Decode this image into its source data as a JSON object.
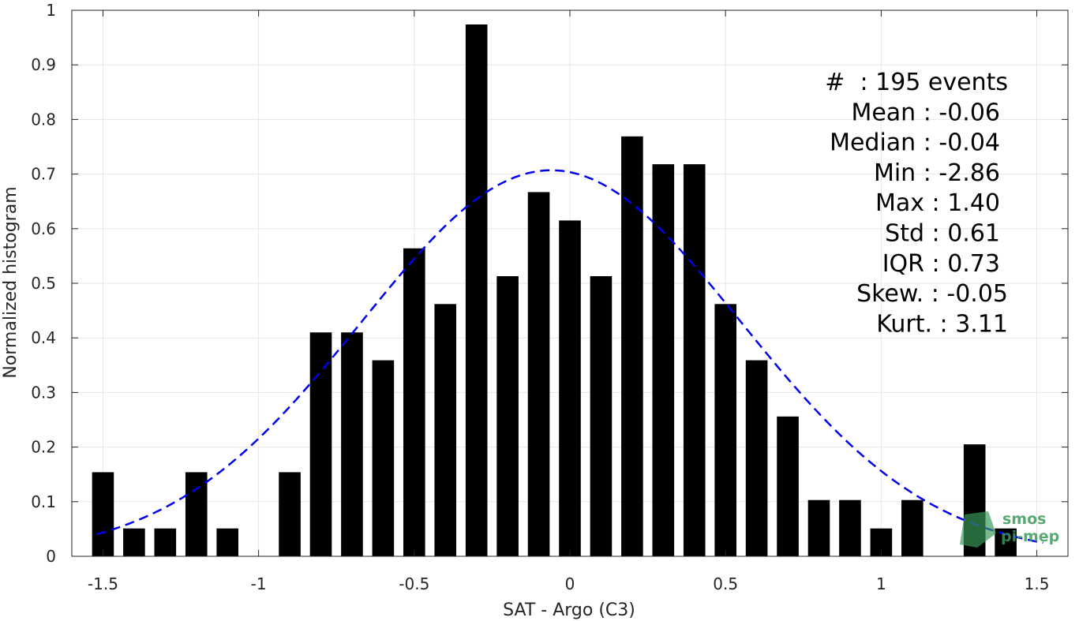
{
  "chart_data": {
    "type": "bar",
    "xlabel": "SAT - Argo (C3)",
    "ylabel": "Normalized histogram",
    "xlim": [
      -1.6,
      1.6
    ],
    "ylim": [
      0,
      1
    ],
    "xticks": [
      -1.5,
      -1,
      -0.5,
      0,
      0.5,
      1,
      1.5
    ],
    "xtick_labels": [
      "-1.5",
      "-1",
      "-0.5",
      "0",
      "0.5",
      "1",
      "1.5"
    ],
    "yticks": [
      0,
      0.1,
      0.2,
      0.3,
      0.4,
      0.5,
      0.6,
      0.7,
      0.8,
      0.9,
      1
    ],
    "ytick_labels": [
      "0",
      "0.1",
      "0.2",
      "0.3",
      "0.4",
      "0.5",
      "0.6",
      "0.7",
      "0.8",
      "0.9",
      "1"
    ],
    "grid": true,
    "bin_width": 0.1,
    "bar_width": 0.07,
    "bar_color": "#000000",
    "bins": [
      {
        "x": -1.5,
        "y": 0.154
      },
      {
        "x": -1.4,
        "y": 0.051
      },
      {
        "x": -1.3,
        "y": 0.051
      },
      {
        "x": -1.2,
        "y": 0.154
      },
      {
        "x": -1.1,
        "y": 0.051
      },
      {
        "x": -1.0,
        "y": 0
      },
      {
        "x": -0.9,
        "y": 0.154
      },
      {
        "x": -0.8,
        "y": 0.41
      },
      {
        "x": -0.7,
        "y": 0.41
      },
      {
        "x": -0.6,
        "y": 0.359
      },
      {
        "x": -0.5,
        "y": 0.564
      },
      {
        "x": -0.4,
        "y": 0.462
      },
      {
        "x": -0.3,
        "y": 0.974
      },
      {
        "x": -0.2,
        "y": 0.513
      },
      {
        "x": -0.1,
        "y": 0.667
      },
      {
        "x": 0.0,
        "y": 0.615
      },
      {
        "x": 0.1,
        "y": 0.513
      },
      {
        "x": 0.2,
        "y": 0.769
      },
      {
        "x": 0.3,
        "y": 0.718
      },
      {
        "x": 0.4,
        "y": 0.718
      },
      {
        "x": 0.5,
        "y": 0.462
      },
      {
        "x": 0.6,
        "y": 0.359
      },
      {
        "x": 0.7,
        "y": 0.256
      },
      {
        "x": 0.8,
        "y": 0.103
      },
      {
        "x": 0.9,
        "y": 0.103
      },
      {
        "x": 1.0,
        "y": 0.051
      },
      {
        "x": 1.1,
        "y": 0.103
      },
      {
        "x": 1.2,
        "y": 0
      },
      {
        "x": 1.3,
        "y": 0.205
      },
      {
        "x": 1.4,
        "y": 0.051
      }
    ],
    "fit_curve": {
      "style": "dashed",
      "color": "#0000ee",
      "mean": -0.06,
      "std": 0.61,
      "peak": 0.707,
      "x_range": [
        -1.52,
        1.52
      ]
    },
    "annotation_lines": [
      "#  : 195 events",
      "Mean : -0.06",
      "Median : -0.04",
      "Min : -2.86",
      "Max : 1.40",
      "Std : 0.61",
      "IQR : 0.73",
      "Skew. : -0.05",
      "Kurt. : 3.11"
    ]
  },
  "logo": {
    "line1": "smos",
    "line2": "pi-mep",
    "color": "#3a9a5a"
  }
}
